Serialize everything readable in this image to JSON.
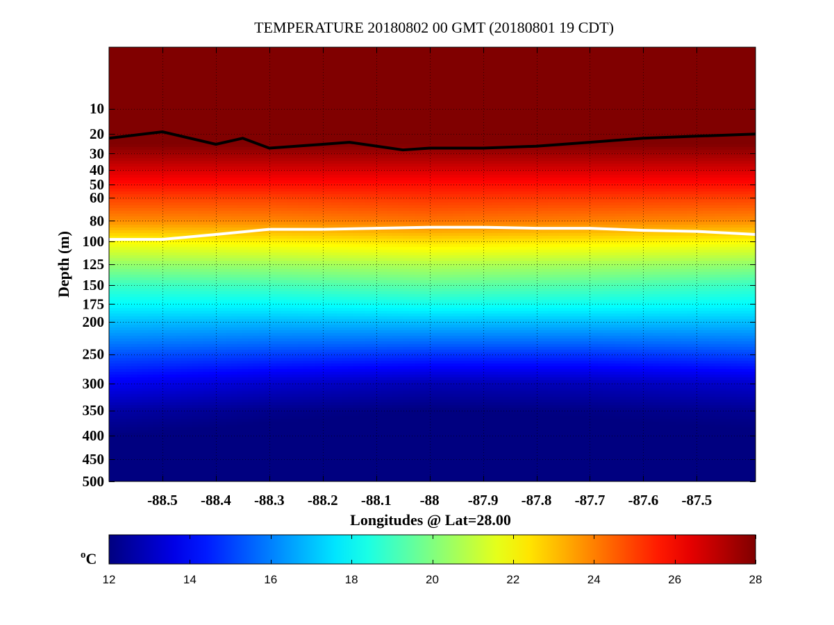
{
  "chart_data": {
    "type": "heatmap",
    "title": "TEMPERATURE 20180802 00 GMT (20180801 19 CDT)",
    "xlabel": "Longitudes @ Lat=28.00",
    "ylabel": "Depth (m)",
    "x_ticks": [
      -88.5,
      -88.4,
      -88.3,
      -88.2,
      -88.1,
      -88,
      -87.9,
      -87.8,
      -87.7,
      -87.6,
      -87.5
    ],
    "x_tick_labels": [
      "-88.5",
      "-88.4",
      "-88.3",
      "-88.2",
      "-88.1",
      "-88",
      "-87.9",
      "-87.8",
      "-87.7",
      "-87.6",
      "-87.5"
    ],
    "xlim": [
      -88.6,
      -87.39
    ],
    "y_ticks": [
      10,
      20,
      30,
      40,
      50,
      60,
      80,
      100,
      125,
      150,
      175,
      200,
      250,
      300,
      350,
      400,
      450,
      500
    ],
    "y_tick_labels": [
      "10",
      "20",
      "30",
      "40",
      "50",
      "60",
      "80",
      "100",
      "125",
      "150",
      "175",
      "200",
      "250",
      "300",
      "350",
      "400",
      "450",
      "500"
    ],
    "ylim": [
      500,
      0
    ],
    "y_scale": "square-root",
    "grid": true,
    "colorbar": {
      "label": "°C",
      "label_base": "o",
      "label_unit": "C",
      "range": [
        12,
        28
      ],
      "ticks": [
        "12",
        "14",
        "16",
        "18",
        "20",
        "22",
        "24",
        "26",
        "28"
      ],
      "colormap": "jet"
    },
    "isotherms": [
      {
        "color": "#000000",
        "x": [
          -88.6,
          -88.5,
          -88.4,
          -88.35,
          -88.3,
          -88.2,
          -88.15,
          -88.05,
          -88,
          -87.9,
          -87.8,
          -87.7,
          -87.6,
          -87.5,
          -87.39
        ],
        "y": [
          22,
          19,
          25,
          22,
          27,
          25,
          24,
          28,
          27,
          27,
          26,
          24,
          22,
          21,
          20
        ]
      },
      {
        "color": "#ffffff",
        "x": [
          -88.6,
          -88.5,
          -88.4,
          -88.3,
          -88.2,
          -88.1,
          -88,
          -87.9,
          -87.8,
          -87.7,
          -87.6,
          -87.5,
          -87.39
        ],
        "y": [
          98,
          98,
          93,
          88,
          88,
          87,
          86,
          86,
          87,
          87,
          89,
          90,
          93
        ]
      }
    ],
    "temperature_profile": {
      "depth": [
        0,
        20,
        30,
        40,
        50,
        60,
        80,
        100,
        125,
        150,
        175,
        200,
        250,
        300,
        350,
        400,
        500
      ],
      "columns": [
        {
          "x": -88.6,
          "temp": [
            28.5,
            28.5,
            27.5,
            26.6,
            25.8,
            25.0,
            23.8,
            22.0,
            20.3,
            18.9,
            18.0,
            17.0,
            15.3,
            13.8,
            12.6,
            12.0,
            11.5
          ]
        },
        {
          "x": -88.3,
          "temp": [
            28.5,
            28.5,
            27.5,
            26.6,
            25.8,
            25.0,
            23.9,
            22.2,
            20.5,
            19.1,
            18.0,
            16.9,
            15.0,
            13.2,
            12.2,
            11.8,
            11.5
          ]
        },
        {
          "x": -88,
          "temp": [
            28.5,
            28.5,
            27.5,
            26.6,
            25.8,
            25.2,
            24.2,
            22.5,
            20.8,
            19.5,
            18.3,
            17.0,
            14.8,
            12.8,
            12.0,
            11.7,
            11.5
          ]
        },
        {
          "x": -87.7,
          "temp": [
            28.5,
            28.5,
            27.5,
            26.6,
            25.8,
            25.1,
            24.0,
            22.3,
            20.6,
            19.3,
            18.2,
            17.0,
            14.8,
            12.9,
            12.1,
            11.8,
            11.5
          ]
        },
        {
          "x": -87.39,
          "temp": [
            28.5,
            28.5,
            27.5,
            26.6,
            25.8,
            25.0,
            23.8,
            22.0,
            20.3,
            18.9,
            18.0,
            17.0,
            15.1,
            13.2,
            12.3,
            11.9,
            11.5
          ]
        }
      ]
    }
  }
}
